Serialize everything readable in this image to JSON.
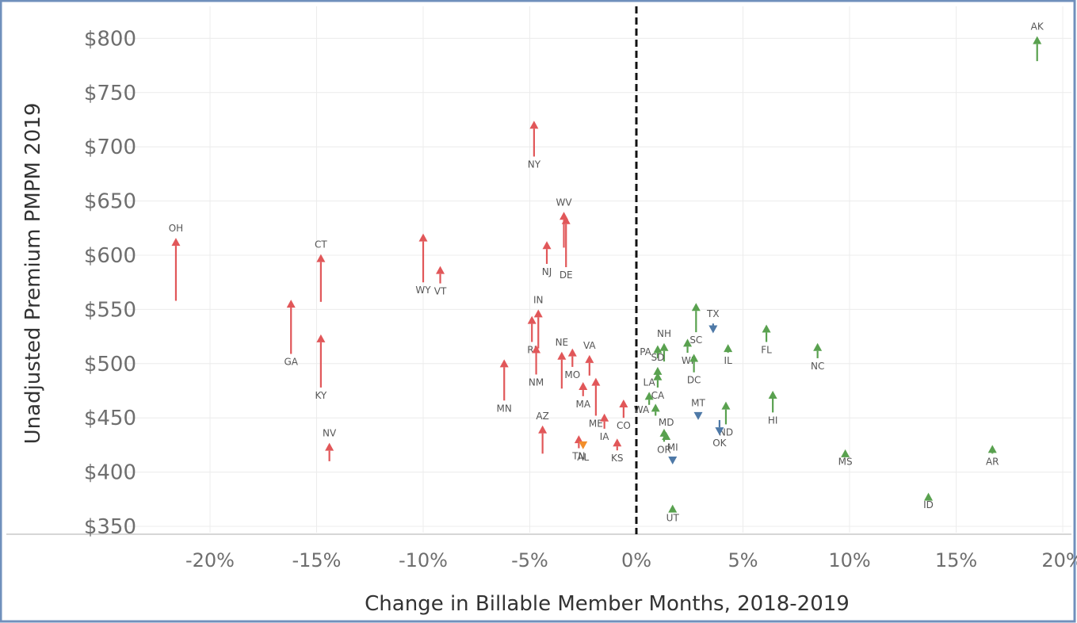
{
  "chart_data": {
    "type": "scatter",
    "title": "",
    "xlabel": "Change in Billable Member Months, 2018-2019",
    "ylabel": "Unadjusted Premium PMPM 2019",
    "x_unit": "percent",
    "xlim": [
      -24,
      20.5
    ],
    "ylim": [
      338,
      818
    ],
    "x_ticks": [
      -20,
      -15,
      -10,
      -5,
      0,
      5,
      10,
      15,
      20
    ],
    "x_tick_labels": [
      "-20%",
      "-15%",
      "-10%",
      "-5%",
      "0%",
      "5%",
      "10%",
      "15%",
      "20%"
    ],
    "y_ticks": [
      350,
      400,
      450,
      500,
      550,
      600,
      650,
      700,
      750,
      800
    ],
    "y_tick_labels": [
      "$350",
      "$400",
      "$450",
      "$500",
      "$550",
      "$600",
      "$650",
      "$700",
      "$750",
      "$800"
    ],
    "grid": true,
    "reference_line": {
      "x": 0,
      "style": "dashed"
    },
    "legend": "none",
    "colors": {
      "red": "#e15759",
      "green": "#59a14f",
      "blue": "#4e79a7",
      "orange": "#f28e2b"
    },
    "points": [
      {
        "state": "OH",
        "x": -21.6,
        "y_from": 558,
        "y_to": 616,
        "color": "red",
        "label_pos": "above"
      },
      {
        "state": "CT",
        "x": -14.8,
        "y_from": 557,
        "y_to": 601,
        "color": "red",
        "label_pos": "above"
      },
      {
        "state": "GA",
        "x": -16.2,
        "y_from": 509,
        "y_to": 559,
        "color": "red",
        "label_pos": "below"
      },
      {
        "state": "KY",
        "x": -14.8,
        "y_from": 478,
        "y_to": 527,
        "color": "red",
        "label_pos": "below"
      },
      {
        "state": "NV",
        "x": -14.4,
        "y_from": 410,
        "y_to": 427,
        "color": "red",
        "label_pos": "above"
      },
      {
        "state": "WY",
        "x": -10.0,
        "y_from": 575,
        "y_to": 620,
        "color": "red",
        "label_pos": "below"
      },
      {
        "state": "VT",
        "x": -9.2,
        "y_from": 574,
        "y_to": 590,
        "color": "red",
        "label_pos": "below"
      },
      {
        "state": "NY",
        "x": -4.8,
        "y_from": 691,
        "y_to": 724,
        "color": "red",
        "label_pos": "below"
      },
      {
        "state": "WV",
        "x": -3.4,
        "y_from": 607,
        "y_to": 640,
        "color": "red",
        "label_pos": "above"
      },
      {
        "state": "DE",
        "x": -3.3,
        "y_from": 589,
        "y_to": 636,
        "color": "red",
        "label_pos": "below"
      },
      {
        "state": "NJ",
        "x": -4.2,
        "y_from": 592,
        "y_to": 613,
        "color": "red",
        "label_pos": "below"
      },
      {
        "state": "IN",
        "x": -4.6,
        "y_from": 514,
        "y_to": 550,
        "color": "red",
        "label_pos": "above"
      },
      {
        "state": "RI",
        "x": -4.9,
        "y_from": 520,
        "y_to": 544,
        "color": "red",
        "label_pos": "below"
      },
      {
        "state": "NM",
        "x": -4.7,
        "y_from": 490,
        "y_to": 517,
        "color": "red",
        "label_pos": "below"
      },
      {
        "state": "NE",
        "x": -3.5,
        "y_from": 477,
        "y_to": 511,
        "color": "red",
        "label_pos": "above"
      },
      {
        "state": "MO",
        "x": -3.0,
        "y_from": 497,
        "y_to": 514,
        "color": "red",
        "label_pos": "below"
      },
      {
        "state": "VA",
        "x": -2.2,
        "y_from": 489,
        "y_to": 508,
        "color": "red",
        "label_pos": "above"
      },
      {
        "state": "ME",
        "x": -1.9,
        "y_from": 452,
        "y_to": 487,
        "color": "red",
        "label_pos": "below"
      },
      {
        "state": "MA",
        "x": -2.5,
        "y_from": 470,
        "y_to": 483,
        "color": "red",
        "label_pos": "below"
      },
      {
        "state": "MN",
        "x": -6.2,
        "y_from": 466,
        "y_to": 504,
        "color": "red",
        "label_pos": "below"
      },
      {
        "state": "IA",
        "x": -1.5,
        "y_from": 440,
        "y_to": 454,
        "color": "red",
        "label_pos": "below"
      },
      {
        "state": "CO",
        "x": -0.6,
        "y_from": 450,
        "y_to": 467,
        "color": "red",
        "label_pos": "below"
      },
      {
        "state": "AZ",
        "x": -4.4,
        "y_from": 417,
        "y_to": 443,
        "color": "red",
        "label_pos": "above"
      },
      {
        "state": "TN",
        "x": -2.7,
        "y_from": 422,
        "y_to": 434,
        "color": "red",
        "label_pos": "below"
      },
      {
        "state": "KS",
        "x": -0.9,
        "y_from": 420,
        "y_to": 431,
        "color": "red",
        "label_pos": "below"
      },
      {
        "state": "AL",
        "x": -2.5,
        "y_from": 427,
        "y_to": 421,
        "color": "orange",
        "label_pos": "below"
      },
      {
        "state": "AK",
        "x": 18.8,
        "y_from": 779,
        "y_to": 802,
        "color": "green",
        "label_pos": "above"
      },
      {
        "state": "SC",
        "x": 2.8,
        "y_from": 529,
        "y_to": 556,
        "color": "green",
        "label_pos": "below"
      },
      {
        "state": "NH",
        "x": 1.3,
        "y_from": 502,
        "y_to": 519,
        "color": "green",
        "label_pos": "above"
      },
      {
        "state": "PA",
        "x": 1.0,
        "y_from": 505,
        "y_to": 517,
        "color": "green",
        "label_pos": "left"
      },
      {
        "state": "WI",
        "x": 2.4,
        "y_from": 510,
        "y_to": 523,
        "color": "green",
        "label_pos": "below"
      },
      {
        "state": "DC",
        "x": 2.7,
        "y_from": 492,
        "y_to": 509,
        "color": "green",
        "label_pos": "below"
      },
      {
        "state": "SD",
        "x": 1.0,
        "y_from": 485,
        "y_to": 497,
        "color": "green",
        "label_pos": "above"
      },
      {
        "state": "CA",
        "x": 1.0,
        "y_from": 478,
        "y_to": 492,
        "color": "green",
        "label_pos": "below"
      },
      {
        "state": "LA",
        "x": 0.6,
        "y_from": 462,
        "y_to": 474,
        "color": "green",
        "label_pos": "above"
      },
      {
        "state": "WA",
        "x": 0.9,
        "y_from": 452,
        "y_to": 463,
        "color": "green",
        "label_pos": "left"
      },
      {
        "state": "MD",
        "x": 1.4,
        "y_from": 433,
        "y_to": 437,
        "color": "green",
        "label_pos": "above"
      },
      {
        "state": "OR",
        "x": 1.3,
        "y_from": 428,
        "y_to": 440,
        "color": "green",
        "label_pos": "below"
      },
      {
        "state": "UT",
        "x": 1.7,
        "y_from": 365,
        "y_to": 370,
        "color": "green",
        "label_pos": "below"
      },
      {
        "state": "IL",
        "x": 4.3,
        "y_from": 510,
        "y_to": 518,
        "color": "green",
        "label_pos": "below"
      },
      {
        "state": "FL",
        "x": 6.1,
        "y_from": 520,
        "y_to": 536,
        "color": "green",
        "label_pos": "below"
      },
      {
        "state": "NC",
        "x": 8.5,
        "y_from": 505,
        "y_to": 519,
        "color": "green",
        "label_pos": "below"
      },
      {
        "state": "HI",
        "x": 6.4,
        "y_from": 455,
        "y_to": 475,
        "color": "green",
        "label_pos": "below"
      },
      {
        "state": "ND",
        "x": 4.2,
        "y_from": 444,
        "y_to": 465,
        "color": "green",
        "label_pos": "below"
      },
      {
        "state": "MS",
        "x": 9.8,
        "y_from": 417,
        "y_to": 421,
        "color": "green",
        "label_pos": "below"
      },
      {
        "state": "ID",
        "x": 13.7,
        "y_from": 377,
        "y_to": 381,
        "color": "green",
        "label_pos": "below"
      },
      {
        "state": "AR",
        "x": 16.7,
        "y_from": 417,
        "y_to": 425,
        "color": "green",
        "label_pos": "below"
      },
      {
        "state": "TX",
        "x": 3.6,
        "y_from": 537,
        "y_to": 528,
        "color": "blue",
        "label_pos": "above"
      },
      {
        "state": "MT",
        "x": 2.9,
        "y_from": 455,
        "y_to": 448,
        "color": "blue",
        "label_pos": "above"
      },
      {
        "state": "OK",
        "x": 3.9,
        "y_from": 448,
        "y_to": 434,
        "color": "blue",
        "label_pos": "below"
      },
      {
        "state": "MI",
        "x": 1.7,
        "y_from": 414,
        "y_to": 407,
        "color": "blue",
        "label_pos": "above"
      }
    ]
  }
}
